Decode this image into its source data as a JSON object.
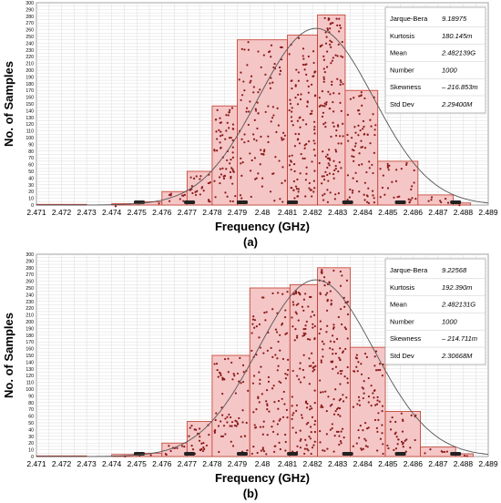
{
  "chart_data": [
    {
      "type": "bar",
      "panel_label": "(a)",
      "xlabel": "Frequency (GHz)",
      "ylabel": "No. of Samples",
      "xlim": [
        2.471,
        2.489
      ],
      "ylim": [
        0,
        300
      ],
      "x_ticks": [
        "2.471",
        "2.472",
        "2.473",
        "2.474",
        "2.475",
        "2.476",
        "2.477",
        "2.478",
        "2.479",
        "2.48",
        "2.481",
        "2.482",
        "2.483",
        "2.484",
        "2.485",
        "2.486",
        "2.487",
        "2.488",
        "2.489"
      ],
      "y_ticks": [
        "0",
        "10",
        "20",
        "30",
        "40",
        "50",
        "60",
        "70",
        "80",
        "90",
        "100",
        "110",
        "120",
        "130",
        "140",
        "150",
        "160",
        "170",
        "180",
        "190",
        "200",
        "210",
        "220",
        "230",
        "240",
        "250",
        "260",
        "270",
        "280",
        "290",
        "300"
      ],
      "bins": [
        {
          "x0": 2.471,
          "x1": 2.472,
          "value": 1
        },
        {
          "x0": 2.472,
          "x1": 2.473,
          "value": 1
        },
        {
          "x0": 2.473,
          "x1": 2.474,
          "value": 0
        },
        {
          "x0": 2.474,
          "x1": 2.475,
          "value": 2
        },
        {
          "x0": 2.475,
          "x1": 2.476,
          "value": 5
        },
        {
          "x0": 2.476,
          "x1": 2.477,
          "value": 20
        },
        {
          "x0": 2.477,
          "x1": 2.478,
          "value": 50
        },
        {
          "x0": 2.478,
          "x1": 2.479,
          "value": 147
        },
        {
          "x0": 2.479,
          "x1": 2.481,
          "value": 245
        },
        {
          "x0": 2.481,
          "x1": 2.4822,
          "value": 252
        },
        {
          "x0": 2.4822,
          "x1": 2.4833,
          "value": 282
        },
        {
          "x0": 2.4833,
          "x1": 2.4846,
          "value": 170
        },
        {
          "x0": 2.4846,
          "x1": 2.4862,
          "value": 65
        },
        {
          "x0": 2.4862,
          "x1": 2.4876,
          "value": 15
        },
        {
          "x0": 2.4876,
          "x1": 2.4883,
          "value": 3
        }
      ],
      "fit_curve": {
        "mean": 2.482139,
        "std": 0.002294,
        "peak": 262
      },
      "stats": [
        {
          "label": "Jarque-Bera",
          "value": "9.18975"
        },
        {
          "label": "Kurtosis",
          "value": "180.145m"
        },
        {
          "label": "Mean",
          "value": "2.482139G"
        },
        {
          "label": "Number",
          "value": "1000"
        },
        {
          "label": "Skewness",
          "value": "– 216.853m"
        },
        {
          "label": "Std Dev",
          "value": "2.29400M"
        }
      ],
      "markers_x": [
        2.4751,
        2.4771,
        2.4792,
        2.4812,
        2.4834,
        2.4855,
        2.4877
      ],
      "grid": true,
      "bar_color": "#f5c6c6",
      "bar_edge": "#c0392b",
      "dot_color": "#8b1a1a"
    },
    {
      "type": "bar",
      "panel_label": "(b)",
      "xlabel": "Frequency (GHz)",
      "ylabel": "No. of Samples",
      "xlim": [
        2.471,
        2.489
      ],
      "ylim": [
        0,
        300
      ],
      "x_ticks": [
        "2.471",
        "2.472",
        "2.473",
        "2.474",
        "2.475",
        "2.476",
        "2.477",
        "2.478",
        "2.479",
        "2.48",
        "2.481",
        "2.482",
        "2.483",
        "2.484",
        "2.485",
        "2.486",
        "2.487",
        "2.488",
        "2.489"
      ],
      "y_ticks": [
        "0",
        "10",
        "20",
        "30",
        "40",
        "50",
        "60",
        "70",
        "80",
        "90",
        "100",
        "110",
        "120",
        "130",
        "140",
        "150",
        "160",
        "170",
        "180",
        "190",
        "200",
        "210",
        "220",
        "230",
        "240",
        "250",
        "260",
        "270",
        "280",
        "290",
        "300"
      ],
      "bins": [
        {
          "x0": 2.471,
          "x1": 2.472,
          "value": 1
        },
        {
          "x0": 2.472,
          "x1": 2.473,
          "value": 1
        },
        {
          "x0": 2.473,
          "x1": 2.474,
          "value": 0
        },
        {
          "x0": 2.474,
          "x1": 2.475,
          "value": 3
        },
        {
          "x0": 2.475,
          "x1": 2.476,
          "value": 5
        },
        {
          "x0": 2.476,
          "x1": 2.477,
          "value": 20
        },
        {
          "x0": 2.477,
          "x1": 2.478,
          "value": 52
        },
        {
          "x0": 2.478,
          "x1": 2.4795,
          "value": 150
        },
        {
          "x0": 2.4795,
          "x1": 2.4811,
          "value": 250
        },
        {
          "x0": 2.4811,
          "x1": 2.4822,
          "value": 255
        },
        {
          "x0": 2.4822,
          "x1": 2.4835,
          "value": 280
        },
        {
          "x0": 2.4835,
          "x1": 2.4849,
          "value": 162
        },
        {
          "x0": 2.4849,
          "x1": 2.4863,
          "value": 67
        },
        {
          "x0": 2.4863,
          "x1": 2.4877,
          "value": 14
        },
        {
          "x0": 2.4877,
          "x1": 2.4884,
          "value": 4
        }
      ],
      "fit_curve": {
        "mean": 2.482131,
        "std": 0.00230668,
        "peak": 262
      },
      "stats": [
        {
          "label": "Jarque-Bera",
          "value": "9.22568"
        },
        {
          "label": "Kurtosis",
          "value": "192.390m"
        },
        {
          "label": "Mean",
          "value": "2.482131G"
        },
        {
          "label": "Number",
          "value": "1000"
        },
        {
          "label": "Skewness",
          "value": "– 214.711m"
        },
        {
          "label": "Std Dev",
          "value": "2.30668M"
        }
      ],
      "markers_x": [
        2.4751,
        2.4771,
        2.4792,
        2.4812,
        2.4834,
        2.4855,
        2.4877
      ],
      "grid": true,
      "bar_color": "#f5c6c6",
      "bar_edge": "#c0392b",
      "dot_color": "#8b1a1a"
    }
  ]
}
